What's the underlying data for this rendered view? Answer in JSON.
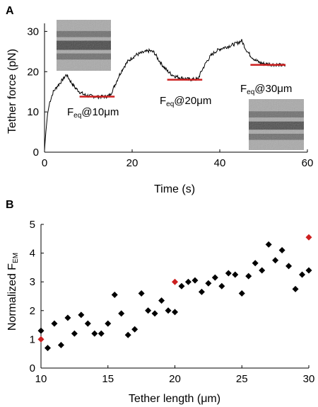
{
  "chart_data": [
    {
      "panel_label": "A",
      "type": "line",
      "xlabel": "Time (s)",
      "ylabel": "Tether force (pN)",
      "xlim": [
        0,
        60
      ],
      "ylim": [
        0,
        32
      ],
      "xticks": [
        "0",
        "20",
        "40",
        "60"
      ],
      "yticks": [
        "0",
        "10",
        "20",
        "30"
      ],
      "trace": {
        "x": [
          0,
          0.3,
          0.7,
          1.2,
          2,
          3,
          4,
          5,
          6,
          7,
          8,
          9,
          10,
          12,
          14,
          15,
          16,
          17,
          18,
          19,
          20,
          21,
          22,
          23,
          24,
          25,
          26,
          27,
          28,
          29,
          30,
          31,
          32,
          33,
          34,
          35,
          36,
          37,
          38,
          39,
          40,
          41,
          42,
          43,
          44,
          45,
          46,
          47,
          48,
          49,
          50,
          52,
          54,
          55
        ],
        "y": [
          0.5,
          5,
          9.5,
          12.5,
          15,
          16.5,
          17.8,
          19.3,
          17.5,
          16,
          15,
          14.3,
          14,
          13.8,
          13.8,
          14.2,
          16.5,
          19,
          21,
          22.5,
          23.5,
          24.2,
          24.6,
          24.9,
          25.2,
          24.8,
          23,
          21.5,
          20.2,
          19.3,
          18.8,
          18.5,
          18.3,
          18.1,
          18.1,
          18.2,
          20.5,
          22.5,
          24,
          25,
          25.6,
          26,
          26.3,
          26.7,
          27.1,
          27.7,
          25.5,
          24,
          23,
          22.3,
          22,
          21.8,
          21.6,
          21.5
        ]
      },
      "equilibrium_lines": [
        {
          "x": [
            8,
            16
          ],
          "y": 13.8
        },
        {
          "x": [
            28,
            36
          ],
          "y": 18.0
        },
        {
          "x": [
            47,
            55
          ],
          "y": 21.7
        }
      ],
      "annotations": [
        {
          "main": "F",
          "sub": "eq",
          "rest": "@10μm"
        },
        {
          "main": "F",
          "sub": "eq",
          "rest": "@20μm"
        },
        {
          "main": "F",
          "sub": "eq",
          "rest": "@30μm"
        }
      ],
      "colors": {
        "trace": "#000000",
        "equilibrium": "#cc1f1f"
      }
    },
    {
      "panel_label": "B",
      "type": "scatter",
      "xlabel": "Tether length (μm)",
      "ylabel_main": "Normalized F",
      "ylabel_sub": "EM",
      "xlim": [
        10,
        30
      ],
      "ylim": [
        0,
        5
      ],
      "xticks": [
        "10",
        "15",
        "20",
        "25",
        "30"
      ],
      "yticks": [
        "0",
        "1",
        "2",
        "3",
        "4",
        "5"
      ],
      "series": [
        {
          "color": "#000000",
          "x": [
            10,
            10.5,
            11,
            11.5,
            12,
            12.5,
            13,
            13.5,
            14,
            14.5,
            15,
            15.5,
            16,
            16.5,
            17,
            17.5,
            18,
            18.5,
            19,
            19.5,
            20,
            20.5,
            21,
            21.5,
            22,
            22.5,
            23,
            23.5,
            24,
            24.5,
            25,
            25.5,
            26,
            26.5,
            27,
            27.5,
            28,
            28.5,
            29,
            29.5,
            30
          ],
          "y": [
            1.3,
            0.7,
            1.55,
            0.8,
            1.75,
            1.2,
            1.85,
            1.55,
            1.2,
            1.2,
            1.55,
            2.55,
            1.9,
            1.15,
            1.35,
            2.6,
            2.0,
            1.9,
            2.35,
            2.0,
            1.95,
            2.85,
            3.0,
            3.05,
            2.65,
            2.95,
            3.15,
            2.85,
            3.3,
            3.25,
            2.6,
            3.2,
            3.65,
            3.4,
            4.3,
            3.75,
            4.1,
            3.55,
            2.75,
            3.25,
            3.4
          ]
        },
        {
          "color": "#cc1f1f",
          "x": [
            10,
            20,
            30
          ],
          "y": [
            1.0,
            3.0,
            4.55
          ]
        }
      ]
    }
  ],
  "insets": [
    {
      "bands": [
        {
          "y": 0.28,
          "shade": 0.35,
          "w": 0.12
        },
        {
          "y": 0.5,
          "shade": 0.15,
          "w": 0.18
        },
        {
          "y": 0.72,
          "shade": 0.35,
          "w": 0.12
        }
      ]
    },
    {
      "bands": [
        {
          "y": 0.3,
          "shade": 0.35,
          "w": 0.12
        },
        {
          "y": 0.52,
          "shade": 0.18,
          "w": 0.16
        },
        {
          "y": 0.74,
          "shade": 0.35,
          "w": 0.12
        }
      ]
    }
  ]
}
